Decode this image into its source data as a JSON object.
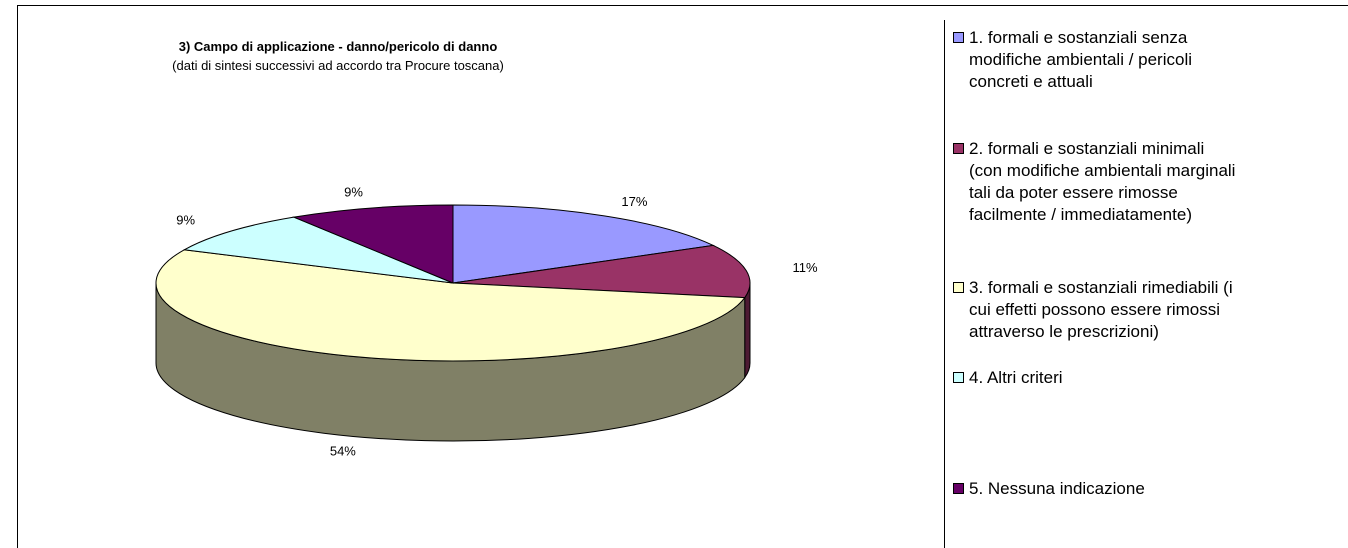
{
  "chart_data": {
    "type": "pie",
    "title": "3) Campo di applicazione - danno/pericolo di danno",
    "subtitle": "(dati di sintesi successivi ad accordo tra Procure toscana)",
    "categories": [
      "1. formali e sostanziali senza\nmodifiche ambientali / pericoli\nconcreti e attuali",
      "2. formali e sostanziali minimali\n(con modifiche ambientali marginali\ntali da poter essere rimosse\nfacilmente / immediatamente)",
      "3. formali e sostanziali rimediabili (i\ncui effetti possono essere rimossi\nattraverso le prescrizioni)",
      "4. Altri criteri",
      "5. Nessuna indicazione"
    ],
    "values": [
      17,
      11,
      54,
      9,
      9
    ],
    "value_labels": [
      "17%",
      "11%",
      "54%",
      "9%",
      "9%"
    ],
    "colors": [
      "#9999ff",
      "#993366",
      "#ffffcc",
      "#ccffff",
      "#660066"
    ],
    "legend": "right"
  }
}
